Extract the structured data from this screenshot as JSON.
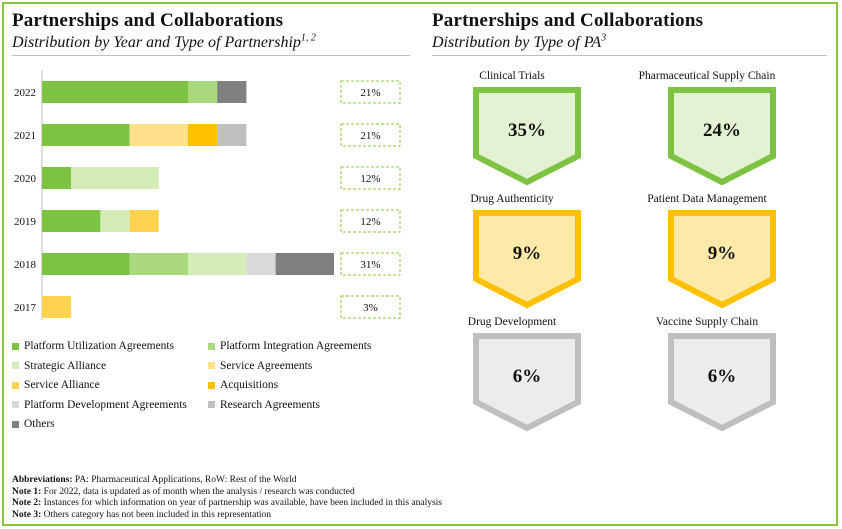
{
  "left": {
    "title": "Partnerships  and Collaborations",
    "subtitle": "Distribution by Year and Type of Partnership",
    "subtitle_sup": "1, 2"
  },
  "right": {
    "title": "Partnerships  and Collaborations",
    "subtitle": "Distribution by Type of PA",
    "subtitle_sup": "3"
  },
  "chart_data": [
    {
      "type": "bar",
      "orientation": "horizontal",
      "stacked": true,
      "categories": [
        "2022",
        "2021",
        "2020",
        "2019",
        "2018",
        "2017"
      ],
      "series": [
        {
          "name": "Platform Utilization Agreements",
          "color": "#7dc242",
          "values": [
            5,
            3,
            1,
            2,
            3,
            0
          ]
        },
        {
          "name": "Platform Integration Agreements",
          "color": "#a9d97c",
          "values": [
            1,
            0,
            0,
            0,
            2,
            0
          ]
        },
        {
          "name": "Strategic Alliance",
          "color": "#d3ecb8",
          "values": [
            0,
            0,
            3,
            1,
            2,
            0
          ]
        },
        {
          "name": "Service Agreements",
          "color": "#ffe08a",
          "values": [
            0,
            2,
            0,
            0,
            0,
            0
          ]
        },
        {
          "name": "Service Alliance",
          "color": "#ffd24f",
          "values": [
            0,
            0,
            0,
            1,
            0,
            1
          ]
        },
        {
          "name": "Acquisitions",
          "color": "#ffc000",
          "values": [
            0,
            1,
            0,
            0,
            0,
            0
          ]
        },
        {
          "name": "Platform Development Agreements",
          "color": "#d9d9d9",
          "values": [
            0,
            0,
            0,
            0,
            1,
            0
          ]
        },
        {
          "name": "Research Agreements",
          "color": "#bfbfbf",
          "values": [
            0,
            1,
            0,
            0,
            0,
            0
          ]
        },
        {
          "name": "Others",
          "color": "#808080",
          "values": [
            1,
            0,
            0,
            0,
            2,
            0
          ]
        }
      ],
      "percent_labels": [
        "21%",
        "21%",
        "12%",
        "12%",
        "31%",
        "3%"
      ]
    },
    {
      "type": "table",
      "items": [
        {
          "label": "Clinical Trials",
          "value": "35%",
          "fill": "#e3f2d3",
          "stroke": "#7dc242"
        },
        {
          "label": "Pharmaceutical Supply Chain",
          "value": "24%",
          "fill": "#e3f2d3",
          "stroke": "#7dc242"
        },
        {
          "label": "Drug Authenticity",
          "value": "9%",
          "fill": "#ffe9a8",
          "stroke": "#ffc000"
        },
        {
          "label": "Patient Data Management",
          "value": "9%",
          "fill": "#ffe9a8",
          "stroke": "#ffc000"
        },
        {
          "label": "Drug Development",
          "value": "6%",
          "fill": "#ececec",
          "stroke": "#bfbfbf"
        },
        {
          "label": "Vaccine Supply Chain",
          "value": "6%",
          "fill": "#ececec",
          "stroke": "#bfbfbf"
        }
      ]
    }
  ],
  "notes": [
    {
      "label": "Abbreviations:",
      "text": " PA: Pharmaceutical Applications, RoW: Rest of the World"
    },
    {
      "label": "Note 1:",
      "text": " For 2022, data is updated as of month when the analysis / research was conducted"
    },
    {
      "label": "Note 2:",
      "text": " Instances for which information on year of partnership was available, have been included in this analysis"
    },
    {
      "label": "Note 3:",
      "text": " Others category has not been included in this representation"
    }
  ]
}
